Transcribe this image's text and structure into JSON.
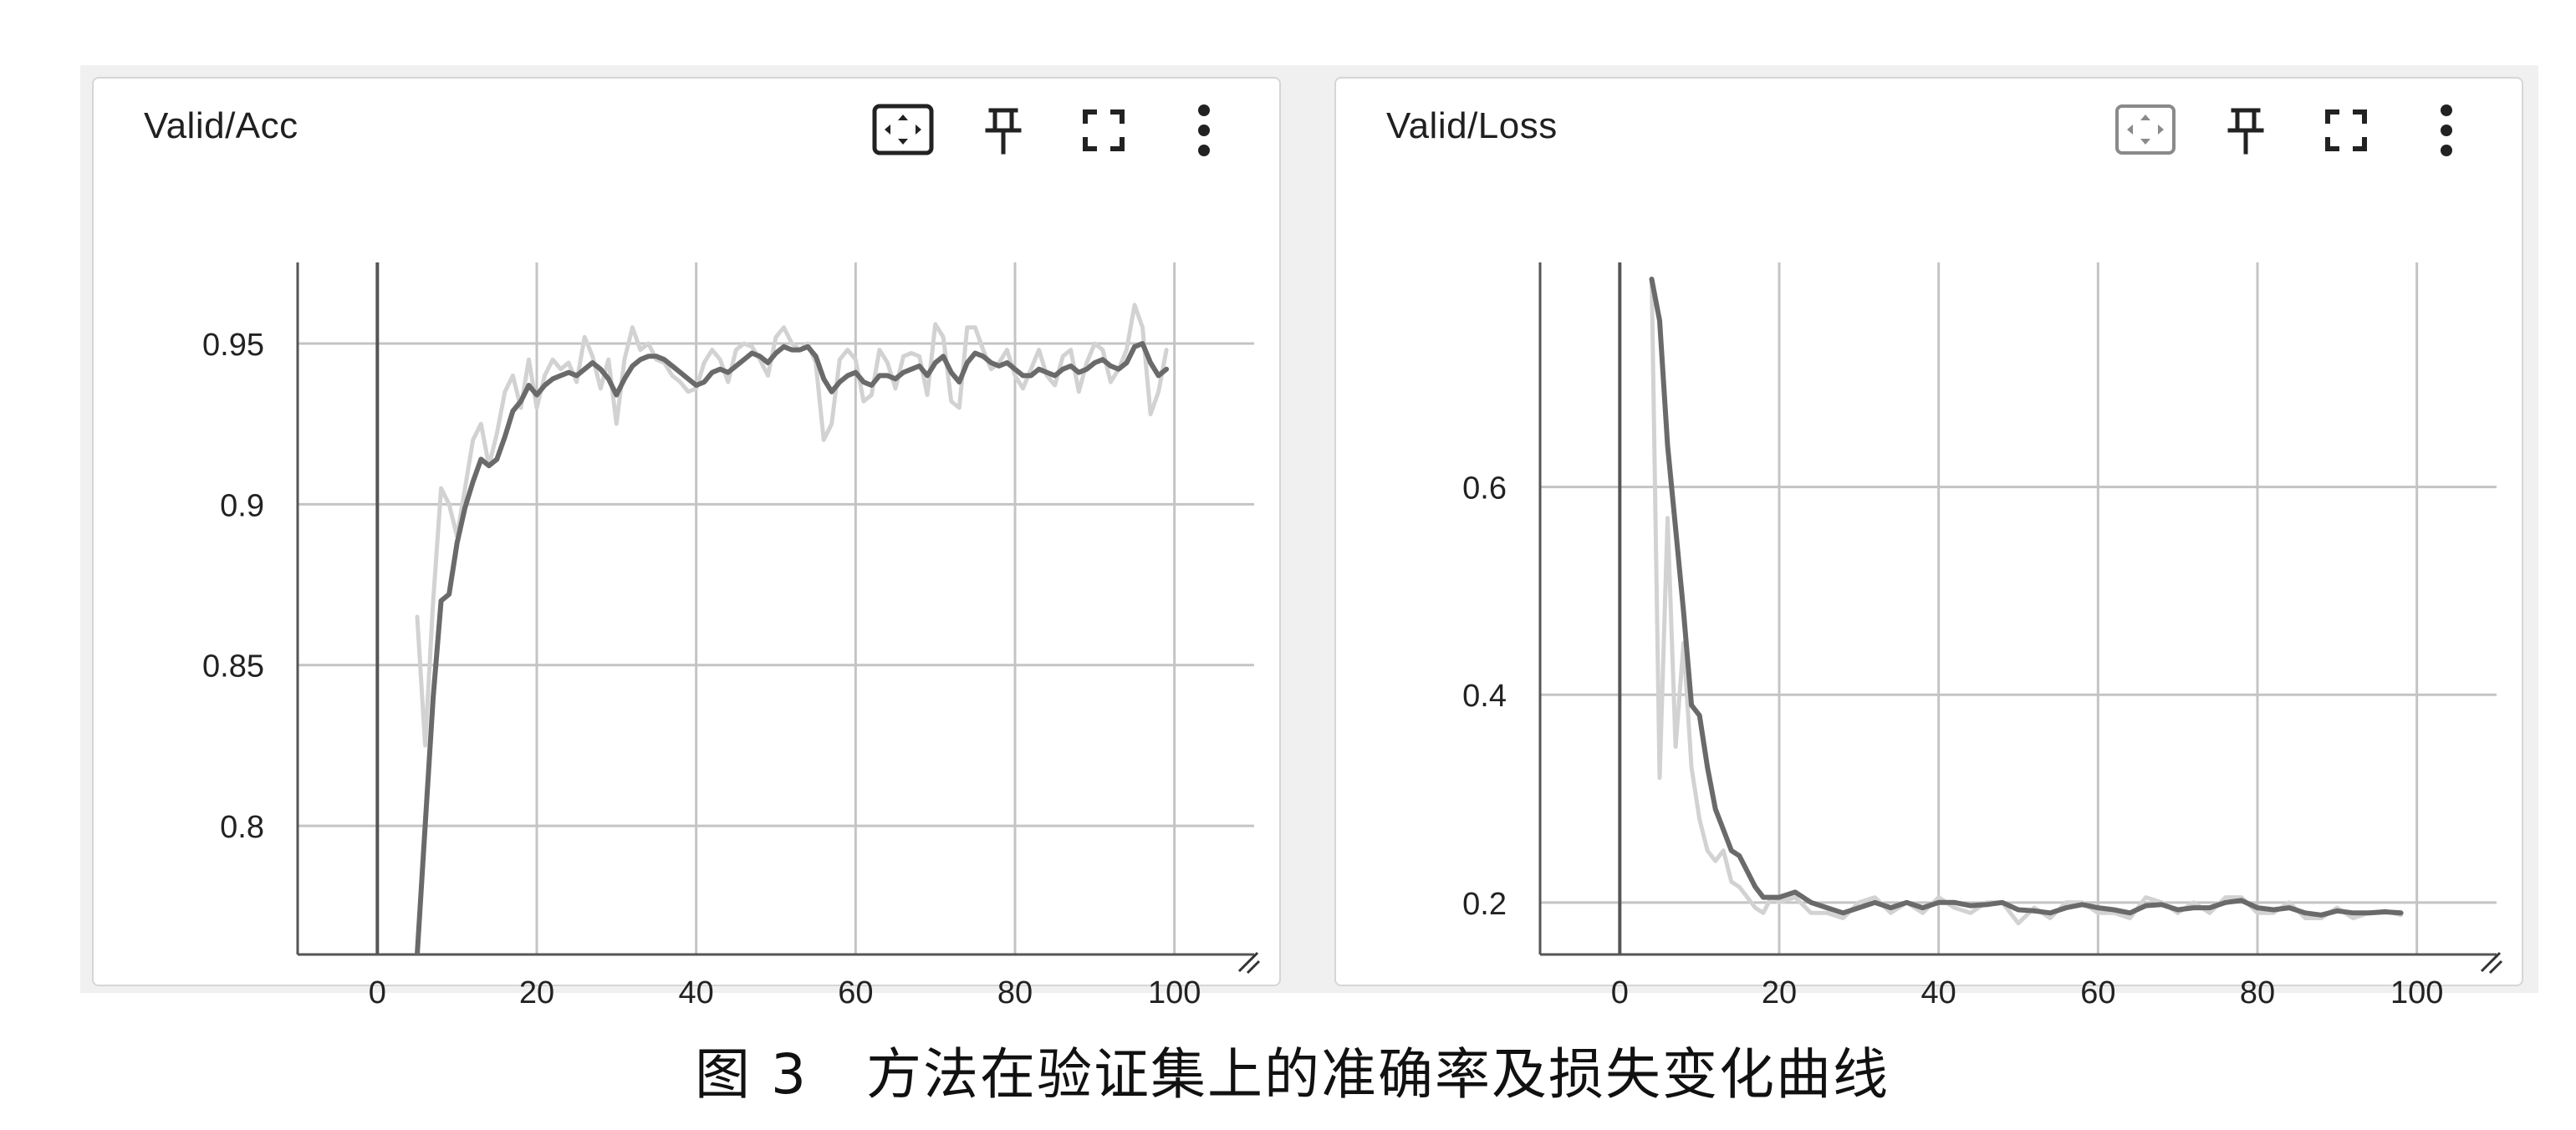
{
  "colors": {
    "smoothed_line": "#6a6a6a",
    "raw_line": "#d2d2d2",
    "grid": "#c4c4c4",
    "axis": "#555555",
    "card_bg": "#ffffff",
    "panel_bg": "#f0f0f0"
  },
  "toolbar_icons": [
    "fit-domain-icon",
    "pin-icon",
    "fullscreen-icon",
    "more-vert-icon"
  ],
  "caption": {
    "figure_label": "图 3",
    "text": "方法在验证集上的准确率及损失变化曲线"
  },
  "chart_data": [
    {
      "type": "line",
      "title": "Valid/Acc",
      "xlabel": "",
      "ylabel": "",
      "xlim": [
        -10,
        110
      ],
      "ylim": [
        0.76,
        0.97
      ],
      "x_ticks": [
        0,
        20,
        40,
        60,
        80,
        100
      ],
      "y_ticks": [
        0.8,
        0.85,
        0.9,
        0.95
      ],
      "y_tick_labels": [
        "0.8",
        "0.85",
        "0.9",
        "0.95"
      ],
      "grid": true,
      "series": [
        {
          "role": "smoothed",
          "x": [
            5,
            6,
            7,
            8,
            9,
            10,
            11,
            12,
            13,
            14,
            15,
            16,
            17,
            18,
            19,
            20,
            21,
            22,
            23,
            24,
            25,
            26,
            27,
            28,
            29,
            30,
            31,
            32,
            33,
            34,
            35,
            36,
            37,
            38,
            39,
            40,
            41,
            42,
            43,
            44,
            45,
            46,
            47,
            48,
            49,
            50,
            51,
            52,
            53,
            54,
            55,
            56,
            57,
            58,
            59,
            60,
            61,
            62,
            63,
            64,
            65,
            66,
            67,
            68,
            69,
            70,
            71,
            72,
            73,
            74,
            75,
            76,
            77,
            78,
            79,
            80,
            81,
            82,
            83,
            84,
            85,
            86,
            87,
            88,
            89,
            90,
            91,
            92,
            93,
            94,
            95,
            96,
            97,
            98,
            99
          ],
          "y": [
            0.76,
            0.8,
            0.84,
            0.87,
            0.872,
            0.888,
            0.899,
            0.907,
            0.914,
            0.912,
            0.914,
            0.921,
            0.929,
            0.932,
            0.937,
            0.934,
            0.937,
            0.939,
            0.94,
            0.941,
            0.94,
            0.942,
            0.944,
            0.942,
            0.939,
            0.934,
            0.939,
            0.943,
            0.945,
            0.946,
            0.946,
            0.945,
            0.943,
            0.941,
            0.939,
            0.937,
            0.938,
            0.941,
            0.942,
            0.941,
            0.943,
            0.945,
            0.947,
            0.946,
            0.944,
            0.947,
            0.949,
            0.948,
            0.948,
            0.949,
            0.946,
            0.939,
            0.935,
            0.938,
            0.94,
            0.941,
            0.938,
            0.937,
            0.94,
            0.94,
            0.939,
            0.941,
            0.942,
            0.943,
            0.94,
            0.944,
            0.946,
            0.941,
            0.938,
            0.944,
            0.947,
            0.946,
            0.944,
            0.943,
            0.944,
            0.942,
            0.94,
            0.94,
            0.942,
            0.941,
            0.94,
            0.942,
            0.943,
            0.941,
            0.942,
            0.944,
            0.945,
            0.943,
            0.942,
            0.944,
            0.949,
            0.95,
            0.944,
            0.94,
            0.942
          ]
        },
        {
          "role": "raw",
          "x": [
            5,
            6,
            7,
            8,
            9,
            10,
            11,
            12,
            13,
            14,
            15,
            16,
            17,
            18,
            19,
            20,
            21,
            22,
            23,
            24,
            25,
            26,
            27,
            28,
            29,
            30,
            31,
            32,
            33,
            34,
            35,
            36,
            37,
            38,
            39,
            40,
            41,
            42,
            43,
            44,
            45,
            46,
            47,
            48,
            49,
            50,
            51,
            52,
            53,
            54,
            55,
            56,
            57,
            58,
            59,
            60,
            61,
            62,
            63,
            64,
            65,
            66,
            67,
            68,
            69,
            70,
            71,
            72,
            73,
            74,
            75,
            76,
            77,
            78,
            79,
            80,
            81,
            82,
            83,
            84,
            85,
            86,
            87,
            88,
            89,
            90,
            91,
            92,
            93,
            94,
            95,
            96,
            97,
            98,
            99
          ],
          "y": [
            0.865,
            0.825,
            0.87,
            0.905,
            0.9,
            0.89,
            0.905,
            0.92,
            0.925,
            0.912,
            0.922,
            0.935,
            0.94,
            0.93,
            0.945,
            0.93,
            0.94,
            0.945,
            0.942,
            0.944,
            0.938,
            0.952,
            0.946,
            0.936,
            0.945,
            0.925,
            0.945,
            0.955,
            0.948,
            0.95,
            0.945,
            0.944,
            0.94,
            0.938,
            0.935,
            0.936,
            0.944,
            0.948,
            0.945,
            0.938,
            0.948,
            0.95,
            0.949,
            0.945,
            0.94,
            0.952,
            0.955,
            0.95,
            0.948,
            0.95,
            0.944,
            0.92,
            0.925,
            0.945,
            0.948,
            0.945,
            0.932,
            0.934,
            0.948,
            0.944,
            0.936,
            0.946,
            0.947,
            0.946,
            0.934,
            0.956,
            0.952,
            0.932,
            0.93,
            0.955,
            0.955,
            0.948,
            0.942,
            0.944,
            0.948,
            0.94,
            0.936,
            0.942,
            0.948,
            0.94,
            0.937,
            0.946,
            0.948,
            0.935,
            0.944,
            0.95,
            0.948,
            0.938,
            0.942,
            0.948,
            0.962,
            0.955,
            0.928,
            0.935,
            0.948
          ]
        }
      ]
    },
    {
      "type": "line",
      "title": "Valid/Loss",
      "xlabel": "",
      "ylabel": "",
      "xlim": [
        -10,
        110
      ],
      "ylim": [
        0.15,
        0.8
      ],
      "x_ticks": [
        0,
        20,
        40,
        60,
        80,
        100
      ],
      "y_ticks": [
        0.2,
        0.4,
        0.6
      ],
      "y_tick_labels": [
        "0.2",
        "0.4",
        "0.6"
      ],
      "grid": true,
      "series": [
        {
          "role": "smoothed",
          "x": [
            4,
            5,
            6,
            7,
            8,
            9,
            10,
            11,
            12,
            13,
            14,
            15,
            16,
            17,
            18,
            19,
            20,
            22,
            24,
            26,
            28,
            30,
            32,
            34,
            36,
            38,
            40,
            42,
            44,
            46,
            48,
            50,
            52,
            54,
            56,
            58,
            60,
            62,
            64,
            66,
            68,
            70,
            72,
            74,
            76,
            78,
            80,
            82,
            84,
            86,
            88,
            90,
            92,
            94,
            96,
            98
          ],
          "y": [
            0.8,
            0.76,
            0.64,
            0.56,
            0.48,
            0.39,
            0.38,
            0.33,
            0.29,
            0.27,
            0.25,
            0.245,
            0.23,
            0.215,
            0.205,
            0.205,
            0.205,
            0.21,
            0.2,
            0.195,
            0.19,
            0.195,
            0.2,
            0.195,
            0.2,
            0.195,
            0.2,
            0.2,
            0.197,
            0.198,
            0.2,
            0.193,
            0.192,
            0.19,
            0.195,
            0.198,
            0.195,
            0.193,
            0.19,
            0.197,
            0.198,
            0.193,
            0.195,
            0.195,
            0.2,
            0.202,
            0.195,
            0.193,
            0.195,
            0.19,
            0.188,
            0.192,
            0.19,
            0.19,
            0.191,
            0.19
          ]
        },
        {
          "role": "raw",
          "x": [
            4,
            5,
            6,
            7,
            8,
            9,
            10,
            11,
            12,
            13,
            14,
            15,
            16,
            17,
            18,
            19,
            20,
            22,
            24,
            26,
            28,
            30,
            32,
            34,
            36,
            38,
            40,
            42,
            44,
            46,
            48,
            50,
            52,
            54,
            56,
            58,
            60,
            62,
            64,
            66,
            68,
            70,
            72,
            74,
            76,
            78,
            80,
            82,
            84,
            86,
            88,
            90,
            92,
            94,
            96,
            98
          ],
          "y": [
            0.8,
            0.32,
            0.57,
            0.35,
            0.45,
            0.33,
            0.28,
            0.25,
            0.24,
            0.25,
            0.22,
            0.215,
            0.205,
            0.195,
            0.19,
            0.205,
            0.2,
            0.205,
            0.19,
            0.19,
            0.185,
            0.2,
            0.205,
            0.19,
            0.2,
            0.19,
            0.205,
            0.195,
            0.19,
            0.2,
            0.2,
            0.18,
            0.195,
            0.185,
            0.2,
            0.2,
            0.19,
            0.19,
            0.185,
            0.205,
            0.2,
            0.19,
            0.2,
            0.19,
            0.205,
            0.205,
            0.19,
            0.19,
            0.2,
            0.185,
            0.185,
            0.195,
            0.185,
            0.19,
            0.192,
            0.188
          ]
        }
      ]
    }
  ]
}
